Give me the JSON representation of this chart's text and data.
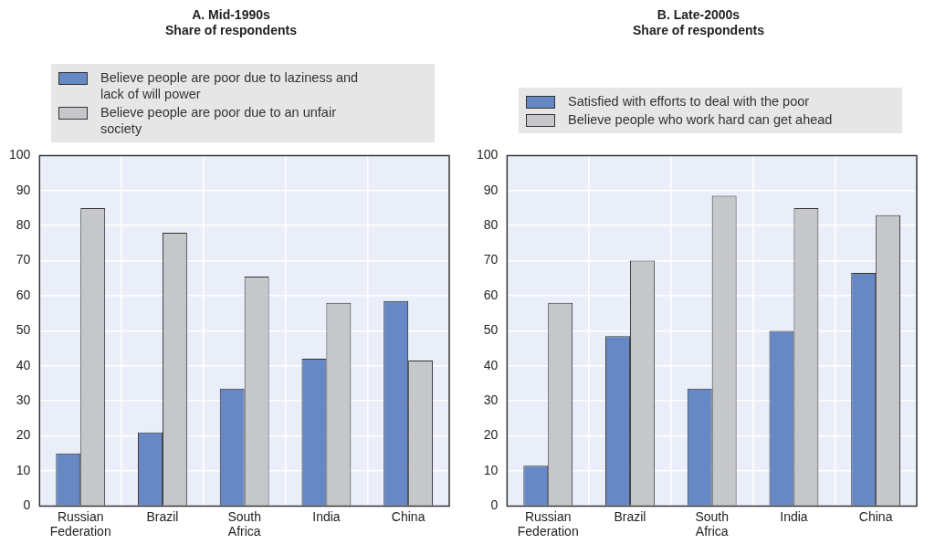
{
  "chart_data": [
    {
      "type": "bar",
      "title": "A. Mid-1990s",
      "subtitle": "Share of respondents",
      "categories": [
        "Russian Federation",
        "Brazil",
        "South Africa",
        "India",
        "China"
      ],
      "series": [
        {
          "name": "Believe people are poor due to laziness and lack of will power",
          "color": "#6688c4",
          "values": [
            15,
            21,
            33.5,
            42,
            58.5
          ]
        },
        {
          "name": "Believe people are poor due to an unfair society",
          "color": "#c6c7ca",
          "values": [
            85,
            78,
            65.5,
            58,
            41.5
          ]
        }
      ],
      "ylim": [
        0,
        100
      ],
      "yticks": [
        0,
        10,
        20,
        30,
        40,
        50,
        60,
        70,
        80,
        90,
        100
      ],
      "grid": true,
      "legend": "top"
    },
    {
      "type": "bar",
      "title": "B. Late-2000s",
      "subtitle": "Share of respondents",
      "categories": [
        "Russian Federation",
        "Brazil",
        "South Africa",
        "India",
        "China"
      ],
      "series": [
        {
          "name": "Satisfied with efforts to deal with the poor",
          "color": "#6688c4",
          "values": [
            11.5,
            48.5,
            33.5,
            50,
            66.5
          ]
        },
        {
          "name": "Believe people who work hard can get ahead",
          "color": "#c6c7ca",
          "values": [
            58,
            70,
            88.5,
            85,
            83
          ]
        }
      ],
      "ylim": [
        0,
        100
      ],
      "yticks": [
        0,
        10,
        20,
        30,
        40,
        50,
        60,
        70,
        80,
        90,
        100
      ],
      "grid": true,
      "legend": "top"
    }
  ]
}
